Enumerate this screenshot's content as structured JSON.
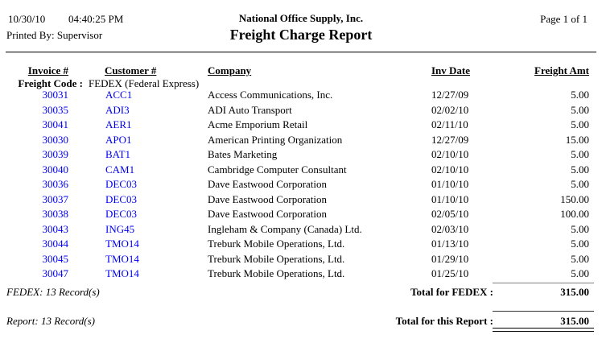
{
  "header": {
    "date": "10/30/10",
    "time": "04:40:25 PM",
    "printed_by": "Printed By: Supervisor",
    "company_name": "National Office Supply, Inc.",
    "report_title": "Freight Charge Report",
    "page_info": "Page 1 of 1"
  },
  "columns": {
    "invoice": "Invoice #",
    "customer": "Customer #",
    "company": "Company",
    "inv_date": "Inv Date",
    "freight_amt": "Freight Amt"
  },
  "group_header": {
    "label": "Freight Code :",
    "value": "FEDEX (Federal Express)"
  },
  "rows": [
    {
      "invoice": "30031",
      "customer": "ACC1",
      "company": "Access Communications, Inc.",
      "inv_date": "12/27/09",
      "freight_amt": "5.00"
    },
    {
      "invoice": "30035",
      "customer": "ADI3",
      "company": "ADI Auto Transport",
      "inv_date": "02/02/10",
      "freight_amt": "5.00"
    },
    {
      "invoice": "30041",
      "customer": "AER1",
      "company": "Acme Emporium Retail",
      "inv_date": "02/11/10",
      "freight_amt": "5.00"
    },
    {
      "invoice": "30030",
      "customer": "APO1",
      "company": "American Printing Organization",
      "inv_date": "12/27/09",
      "freight_amt": "15.00"
    },
    {
      "invoice": "30039",
      "customer": "BAT1",
      "company": "Bates Marketing",
      "inv_date": "02/10/10",
      "freight_amt": "5.00"
    },
    {
      "invoice": "30040",
      "customer": "CAM1",
      "company": "Cambridge Computer Consultant",
      "inv_date": "02/10/10",
      "freight_amt": "5.00"
    },
    {
      "invoice": "30036",
      "customer": "DEC03",
      "company": "Dave Eastwood Corporation",
      "inv_date": "01/10/10",
      "freight_amt": "5.00"
    },
    {
      "invoice": "30037",
      "customer": "DEC03",
      "company": "Dave Eastwood Corporation",
      "inv_date": "01/10/10",
      "freight_amt": "150.00"
    },
    {
      "invoice": "30038",
      "customer": "DEC03",
      "company": "Dave Eastwood Corporation",
      "inv_date": "02/05/10",
      "freight_amt": "100.00"
    },
    {
      "invoice": "30043",
      "customer": "ING45",
      "company": "Ingleham & Company (Canada) Ltd.",
      "inv_date": "02/03/10",
      "freight_amt": "5.00"
    },
    {
      "invoice": "30044",
      "customer": "TMO14",
      "company": "Treburk Mobile Operations, Ltd.",
      "inv_date": "01/13/10",
      "freight_amt": "5.00"
    },
    {
      "invoice": "30045",
      "customer": "TMO14",
      "company": "Treburk Mobile Operations, Ltd.",
      "inv_date": "01/29/10",
      "freight_amt": "5.00"
    },
    {
      "invoice": "30047",
      "customer": "TMO14",
      "company": "Treburk Mobile Operations, Ltd.",
      "inv_date": "01/25/10",
      "freight_amt": "5.00"
    }
  ],
  "group_footer": {
    "record_count": "FEDEX: 13 Record(s)",
    "total_label": "Total for FEDEX :",
    "total_value": "315.00"
  },
  "report_footer": {
    "record_count": "Report: 13 Record(s)",
    "total_label": "Total for this Report :",
    "total_value": "315.00"
  },
  "colors": {
    "link_blue": "#0000f0",
    "text": "#000000",
    "rule": "#3c3c3c"
  }
}
